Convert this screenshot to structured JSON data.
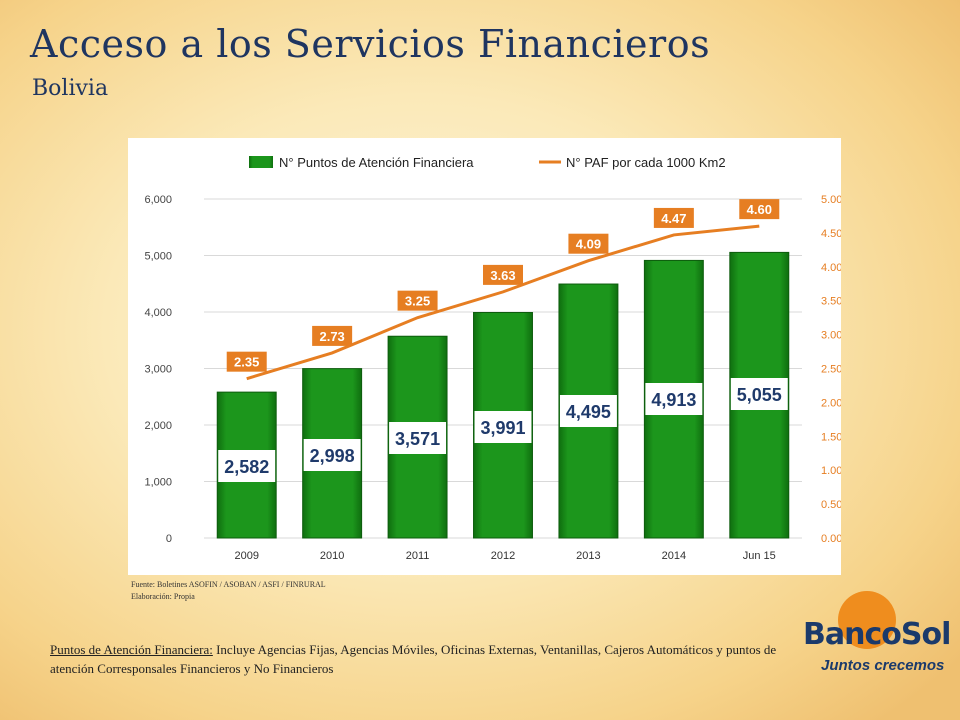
{
  "slide": {
    "title": "Acceso a los Servicios Financieros",
    "subtitle": "Bolivia",
    "source_line1": "Fuente: Boletines ASOFIN / ASOBAN / ASFI / FINRURAL",
    "source_line2": "Elaboración: Propia",
    "note_lead": "Puntos de Atención Financiera:",
    "note_text": " Incluye Agencias Fijas, Agencias Móviles, Oficinas Externas, Ventanillas, Cajeros Automáticos y puntos de atención Corresponsales Financieros y No Financieros"
  },
  "logo": {
    "name": "BancoSol",
    "tagline": "Juntos crecemos",
    "circle_color": "#ef8d1e",
    "text_color": "#1b3a6b"
  },
  "chart_data": {
    "type": "bar",
    "categories": [
      "2009",
      "2010",
      "2011",
      "2012",
      "2013",
      "2014",
      "Jun 15"
    ],
    "series": [
      {
        "name": "N° Puntos de Atención Financiera",
        "type": "bar",
        "axis": "left",
        "color": "#1f8a1f",
        "values": [
          2582,
          2998,
          3571,
          3991,
          4495,
          4913,
          5055
        ],
        "labels": [
          "2,582",
          "2,998",
          "3,571",
          "3,991",
          "4,495",
          "4,913",
          "5,055"
        ]
      },
      {
        "name": "N° PAF por cada 1000 Km2",
        "type": "line",
        "axis": "right",
        "color": "#e67e22",
        "values": [
          2.35,
          2.73,
          3.25,
          3.63,
          4.09,
          4.47,
          4.6
        ],
        "labels": [
          "2.35",
          "2.73",
          "3.25",
          "3.63",
          "4.09",
          "4.47",
          "4.60"
        ]
      }
    ],
    "y_left": {
      "range": [
        0,
        6000
      ],
      "ticks": [
        0,
        1000,
        2000,
        3000,
        4000,
        5000,
        6000
      ],
      "tick_labels": [
        "0",
        "1,000",
        "2,000",
        "3,000",
        "4,000",
        "5,000",
        "6,000"
      ]
    },
    "y_right": {
      "range": [
        0,
        5
      ],
      "ticks": [
        0,
        0.5,
        1,
        1.5,
        2,
        2.5,
        3,
        3.5,
        4,
        4.5,
        5
      ],
      "tick_labels": [
        "0.00",
        "0.50",
        "1.00",
        "1.50",
        "2.00",
        "2.50",
        "3.00",
        "3.50",
        "4.00",
        "4.50",
        "5.00"
      ]
    },
    "grid": true,
    "legend_position": "top"
  }
}
